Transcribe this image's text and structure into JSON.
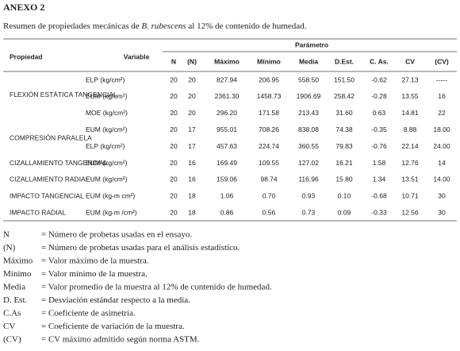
{
  "header": {
    "title": "ANEXO 2",
    "caption": {
      "before": "Resumen de propiedades mecánicas de ",
      "species": "B. rubescens",
      "after": " al 12% de contenido de humedad."
    }
  },
  "table": {
    "group_header": "Parámetro",
    "columns": [
      "Propiedad",
      "Variable",
      "N",
      "(N)",
      "Máximo",
      "Mínimo",
      "Media",
      "D.Est.",
      "C. As.",
      "CV",
      "(CV)"
    ],
    "rows": [
      {
        "cells": [
          "ELP (kg/cm²)",
          "20",
          "20",
          "827.94",
          "206.95",
          "558.50",
          "151.50",
          "-0.62",
          "27.13",
          "-----"
        ]
      },
      {
        "property": "FLEXIÓN ESTÁTICA TANGENCIAL",
        "cells": [
          "EUM (kg/cm²)",
          "20",
          "20",
          "2361.30",
          "1458.73",
          "1906.69",
          "258.42",
          "-0.28",
          "13.55",
          "16"
        ]
      },
      {
        "cells": [
          "MOE (kg/cm²)",
          "20",
          "20",
          "296.20",
          "171.58",
          "213.43",
          "31.60",
          "0.63",
          "14.81",
          "22"
        ]
      },
      {
        "property": "COMPRESIÓN PARALELA",
        "cells": [
          "EUM (kg/cm²)",
          "20",
          "17",
          "955.01",
          "708.26",
          "838.08",
          "74.38",
          "-0.35",
          "8.88",
          "18.00"
        ]
      },
      {
        "cells": [
          "ELP (kg/cm²)",
          "20",
          "17",
          "457.63",
          "224.74",
          "360.55",
          "79.83",
          "-0.76",
          "22.14",
          "24.00"
        ]
      },
      {
        "property": "CIZALLAMIENTO TANGENCIAL",
        "cells": [
          "EUM (kg/cm²)",
          "20",
          "16",
          "169.49",
          "109.55",
          "127.02",
          "16.21",
          "1.58",
          "12.76",
          "14"
        ]
      },
      {
        "property": "CIZALLAMIENTO RADIAL",
        "cells": [
          "EUM (kg/cm²)",
          "20",
          "16",
          "159.06",
          "98.74",
          "116.96",
          "15.80",
          "1.34",
          "13.51",
          "14.00"
        ]
      },
      {
        "property": "IMPACTO TANGENCIAL",
        "cells": [
          "EUM (kg-m cm²)",
          "20",
          "18",
          "1.06",
          "0.70",
          "0.93",
          "0.10",
          "-0.68",
          "10.71",
          "30"
        ]
      },
      {
        "property": "IMPACTO RADIAL",
        "cells": [
          "EUM (kg-m /cm²)",
          "20",
          "18",
          "0.86",
          "0.56",
          "0.73",
          "0.09",
          "-0.33",
          "12.56",
          "30"
        ]
      }
    ]
  },
  "legend": [
    {
      "term": "N",
      "definition": "= Número de probetas usadas en el ensayo."
    },
    {
      "term": "(N)",
      "definition": "= Número de probetas usadas para el análisis estadístico."
    },
    {
      "term": "Máximo",
      "definition": "= Valor máximo de la muestra."
    },
    {
      "term": "Mínimo",
      "definition": "= Valor mínimo de la muestra."
    },
    {
      "term": "Media",
      "definition": "= Valor promedio de la muestra al 12% de contenido de humedad."
    },
    {
      "term": "D. Est.",
      "definition": "= Desviación estándar respecto a la media."
    },
    {
      "term": "C.As",
      "definition": "= Coeficiente de asimetría."
    },
    {
      "term": "CV",
      "definition": "= Coeficiente de variación de la muestra."
    },
    {
      "term": "(CV)",
      "definition": "= CV máximo admitido según norma ASTM."
    }
  ]
}
